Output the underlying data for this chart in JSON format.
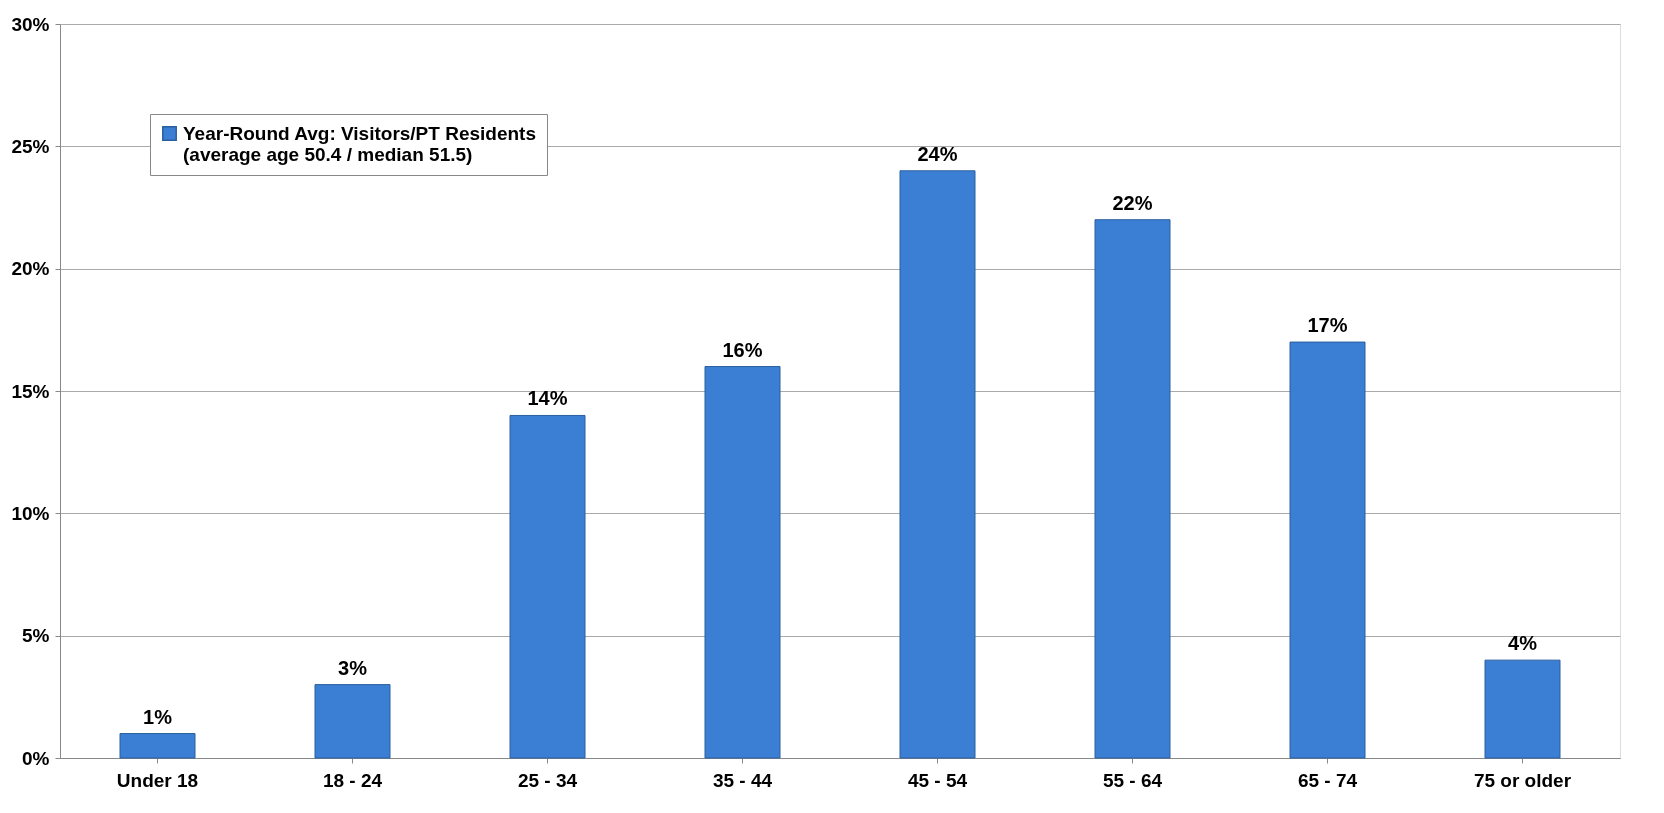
{
  "chart_data": {
    "type": "bar",
    "categories": [
      "Under 18",
      "18 - 24",
      "25 - 34",
      "35 - 44",
      "45 - 54",
      "55 - 64",
      "65 - 74",
      "75 or older"
    ],
    "series": [
      {
        "name": "Year-Round Avg: Visitors/PT Residents\n(average age 50.4 / median 51.5)",
        "color": "#3b7fd4",
        "values": [
          1,
          3,
          14,
          16,
          24,
          22,
          17,
          4
        ],
        "value_labels": [
          "1%",
          "3%",
          "14%",
          "16%",
          "24%",
          "22%",
          "17%",
          "4%"
        ]
      }
    ],
    "ylim": [
      0,
      30
    ],
    "yticks": [
      {
        "value": 0,
        "label": "0%"
      },
      {
        "value": 5,
        "label": "5%"
      },
      {
        "value": 10,
        "label": "10%"
      },
      {
        "value": 15,
        "label": "15%"
      },
      {
        "value": 20,
        "label": "20%"
      },
      {
        "value": 25,
        "label": "25%"
      },
      {
        "value": 30,
        "label": "30%"
      }
    ],
    "grid": "y",
    "legend": "top left"
  }
}
